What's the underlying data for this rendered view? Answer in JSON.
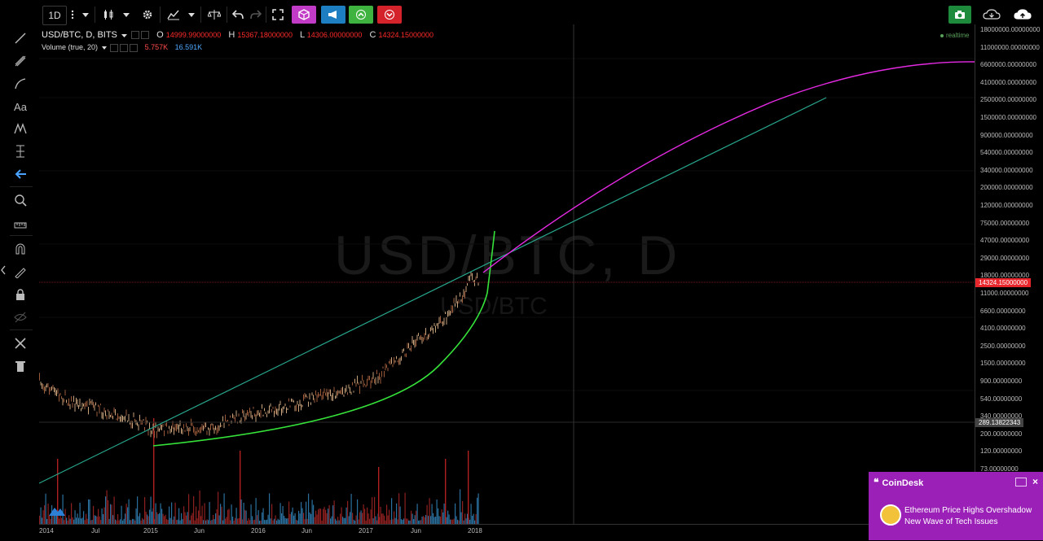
{
  "toolbar": {
    "interval": "1D",
    "icons": [
      "bars-icon",
      "more-dots-icon",
      "candle-type-icon",
      "dropdown-icon",
      "settings-gear-icon",
      "indicators-icon",
      "compare-icon",
      "undo-icon",
      "redo-icon",
      "fullscreen-icon",
      "cube-icon",
      "broadcast-icon",
      "up-arrow-green-icon",
      "down-arrow-red-icon",
      "snapshot-camera-icon",
      "cloud-download-icon",
      "cloud-upload-icon"
    ],
    "colors": {
      "cube": "#c13bc6",
      "broadcast": "#1d7fc1",
      "up": "#3fb33f",
      "down": "#d4232a"
    }
  },
  "left_tools": [
    "crosshair-icon",
    "trend-line-icon",
    "pitchfork-icon",
    "brush-icon",
    "text-tool-icon",
    "pattern-icon",
    "measure-icon",
    "arrow-icon",
    "zoom-icon",
    "ruler-icon",
    "magnet-icon",
    "lock-draw-icon",
    "lock-icon",
    "eye-hide-icon",
    "remove-tools-icon",
    "trash-icon"
  ],
  "legend": {
    "symbol": "USD/BTC, D, BITS",
    "o_key": "O",
    "o": "14999.99000000",
    "h_key": "H",
    "h": "15367.18000000",
    "l_key": "L",
    "l": "14306.00000000",
    "c_key": "C",
    "c": "14324.15000000"
  },
  "volume_legend": {
    "label": "Volume (true, 20)",
    "v1": "5.757K",
    "v2": "16.591K"
  },
  "realtime": "realtime",
  "watermark": {
    "main": "USD/BTC, D",
    "sub": "USD/BTC"
  },
  "price_scale": {
    "labels": [
      "18000000.00000000",
      "11000000.00000000",
      "6600000.00000000",
      "4100000.00000000",
      "2500000.00000000",
      "1500000.00000000",
      "900000.00000000",
      "540000.00000000",
      "340000.00000000",
      "200000.00000000",
      "120000.00000000",
      "75000.00000000",
      "47000.00000000",
      "29000.00000000",
      "18000.00000000",
      "11000.00000000",
      "6600.00000000",
      "4100.00000000",
      "2500.00000000",
      "1500.00000000",
      "900.00000000",
      "540.00000000",
      "340.00000000",
      "200.00000000",
      "120.00000000",
      "73.00000000"
    ],
    "current_tag": "14324.15000000",
    "cursor_tag": "289.13822343",
    "current_color": "#e8262c"
  },
  "time_axis": [
    "2014",
    "Jul",
    "2015",
    "Jun",
    "2016",
    "Jun",
    "2017",
    "Jun",
    "2018"
  ],
  "toast": {
    "source": "CoinDesk",
    "headline": "Ethereum Price Highs Overshadow New Wave of Tech Issues",
    "bg": "#9b20b8"
  },
  "lines": {
    "trend": "#27a58c",
    "fit_green": "#35e23a",
    "fit_magenta": "#e52ae3"
  }
}
